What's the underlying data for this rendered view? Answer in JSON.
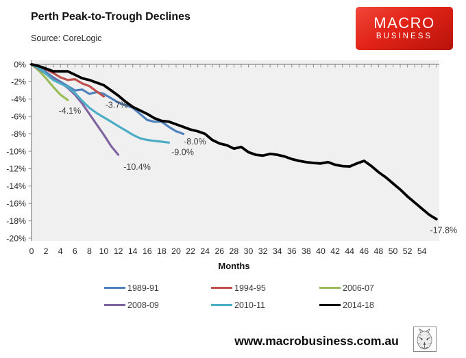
{
  "header": {
    "title": "Perth Peak-to-Trough Declines",
    "source": "Source: CoreLogic",
    "logo_line1": "MACRO",
    "logo_line2": "BUSINESS",
    "logo_color": "#e22318"
  },
  "footer": {
    "url": "www.macrobusiness.com.au"
  },
  "chart_data": {
    "type": "line",
    "title": "Perth Peak-to-Trough Declines",
    "xlabel": "Months",
    "ylabel": "",
    "xlim": [
      0,
      56.5
    ],
    "ylim": [
      -20,
      0
    ],
    "grid": false,
    "plot_background": "#f0f0f0",
    "axis_color": "#8a8a8a",
    "tick_label_color": "#262626",
    "annotation_color": "#3d3d3d",
    "x_ticks": [
      0,
      2,
      4,
      6,
      8,
      10,
      12,
      14,
      16,
      18,
      20,
      22,
      24,
      26,
      28,
      30,
      32,
      34,
      36,
      38,
      40,
      42,
      44,
      46,
      48,
      50,
      52,
      54
    ],
    "y_tick_values": [
      0,
      -2,
      -4,
      -6,
      -8,
      -10,
      -12,
      -14,
      -16,
      -18,
      -20
    ],
    "y_tick_labels": [
      "0%",
      "-2%",
      "-4%",
      "-6%",
      "-8%",
      "-10%",
      "-12%",
      "-14%",
      "-16%",
      "-18%",
      "-20%"
    ],
    "legend_position": "bottom",
    "series": [
      {
        "name": "1989-91",
        "color": "#4f81bd",
        "width": 3.2,
        "values": [
          0,
          -0.3,
          -0.9,
          -1.5,
          -2.0,
          -2.5,
          -3.0,
          -2.9,
          -3.4,
          -3.2,
          -3.4,
          -3.9,
          -4.4,
          -4.7,
          -5.0,
          -5.7,
          -6.4,
          -6.6,
          -6.6,
          -7.2,
          -7.7,
          -8.0
        ]
      },
      {
        "name": "1994-95",
        "color": "#c0504d",
        "width": 3.2,
        "values": [
          0,
          -0.2,
          -0.6,
          -1.0,
          -1.5,
          -1.8,
          -1.7,
          -2.2,
          -2.5,
          -3.1,
          -3.7
        ]
      },
      {
        "name": "2006-07",
        "color": "#9bbb59",
        "width": 3.2,
        "values": [
          0,
          -0.7,
          -1.6,
          -2.6,
          -3.5,
          -4.1
        ]
      },
      {
        "name": "2008-09",
        "color": "#8064a2",
        "width": 3.2,
        "values": [
          0,
          -0.5,
          -1.1,
          -1.6,
          -2.1,
          -2.7,
          -3.5,
          -4.5,
          -5.7,
          -6.9,
          -8.1,
          -9.4,
          -10.4
        ]
      },
      {
        "name": "2010-11",
        "color": "#4bacc6",
        "width": 3.2,
        "values": [
          0,
          -0.4,
          -1.1,
          -1.8,
          -2.2,
          -2.6,
          -3.3,
          -4.2,
          -5.0,
          -5.6,
          -6.1,
          -6.6,
          -7.1,
          -7.6,
          -8.1,
          -8.5,
          -8.7,
          -8.8,
          -8.9,
          -9.0
        ]
      },
      {
        "name": "2014-18",
        "color": "#000000",
        "width": 3.8,
        "values": [
          0,
          -0.2,
          -0.5,
          -0.8,
          -0.8,
          -0.8,
          -1.2,
          -1.6,
          -1.8,
          -2.1,
          -2.4,
          -3.0,
          -3.6,
          -4.3,
          -4.9,
          -5.3,
          -5.7,
          -6.2,
          -6.5,
          -6.6,
          -6.9,
          -7.2,
          -7.5,
          -7.7,
          -8.0,
          -8.7,
          -9.1,
          -9.3,
          -9.7,
          -9.5,
          -10.1,
          -10.4,
          -10.5,
          -10.3,
          -10.4,
          -10.6,
          -10.9,
          -11.1,
          -11.25,
          -11.35,
          -11.4,
          -11.25,
          -11.55,
          -11.7,
          -11.75,
          -11.4,
          -11.1,
          -11.7,
          -12.4,
          -13.0,
          -13.7,
          -14.4,
          -15.2,
          -15.9,
          -16.6,
          -17.3,
          -17.8
        ]
      }
    ],
    "annotations": [
      {
        "text": "-4.1%",
        "month": 5.3,
        "pct": -5.35
      },
      {
        "text": "-3.7%",
        "month": 11.75,
        "pct": -4.7
      },
      {
        "text": "-8.0%",
        "month": 22.6,
        "pct": -8.9
      },
      {
        "text": "-9.0%",
        "month": 20.9,
        "pct": -10.1
      },
      {
        "text": "-10.4%",
        "month": 14.6,
        "pct": -11.8
      },
      {
        "text": "-17.8%",
        "month": 57.0,
        "pct": -19.1
      }
    ]
  }
}
